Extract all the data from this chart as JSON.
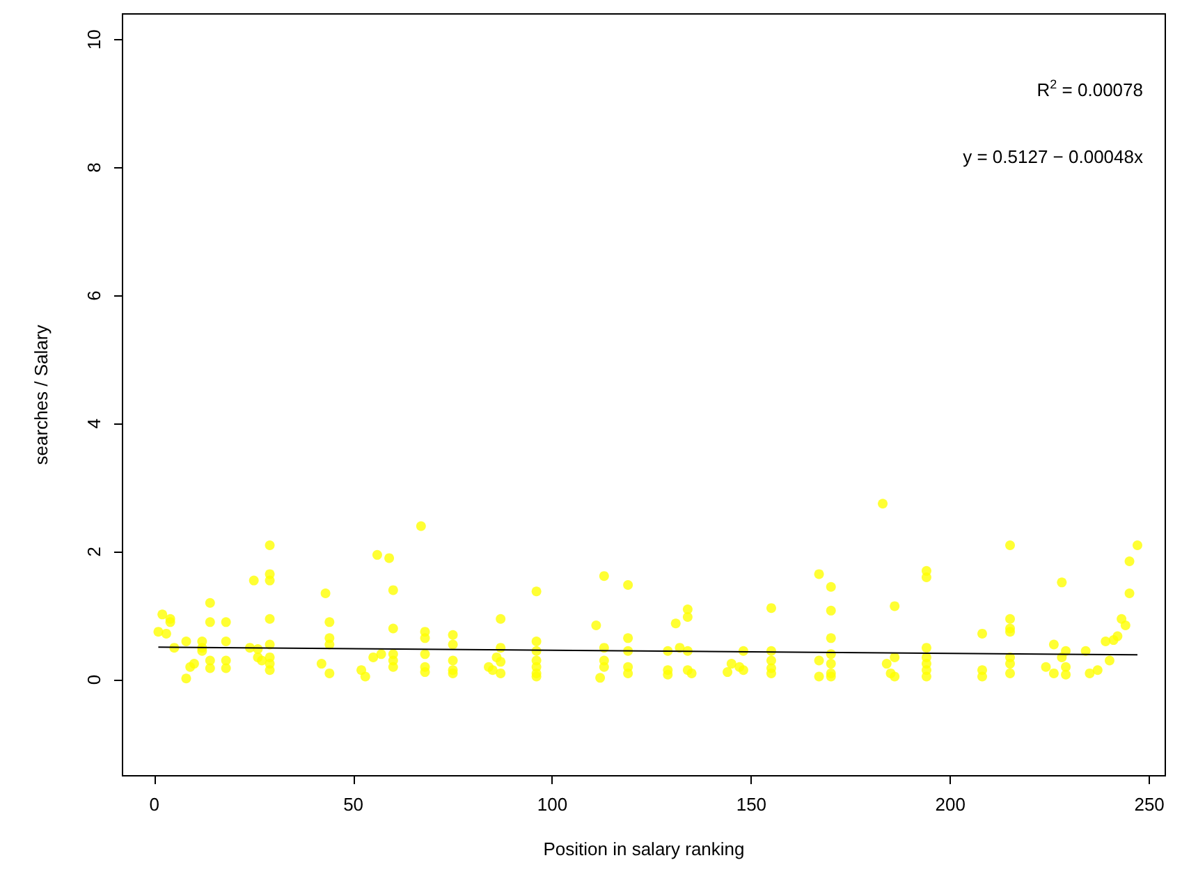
{
  "chart_data": {
    "type": "scatter",
    "xlabel": "Position in salary ranking",
    "ylabel": "searches / Salary",
    "annotations": [
      "R$^{2}$ = 0.00078",
      "y = 0.5127 − 0.00048x"
    ],
    "xlim": [
      -8,
      254
    ],
    "ylim": [
      -1.5,
      10.4
    ],
    "xticks": [
      0,
      50,
      100,
      150,
      200,
      250
    ],
    "yticks": [
      0,
      2,
      4,
      6,
      8,
      10
    ],
    "grid": false,
    "series": [
      {
        "marker": "circle",
        "color": "#ffff00",
        "x": [
          1,
          2,
          3,
          4,
          4,
          5,
          8,
          8,
          9,
          10,
          12,
          12,
          12,
          14,
          14,
          14,
          14,
          18,
          18,
          18,
          18,
          24,
          25,
          26,
          27,
          26,
          29,
          29,
          29,
          29,
          29,
          29,
          29,
          29,
          42,
          43,
          44,
          44,
          44,
          44,
          52,
          53,
          55,
          56,
          57,
          59,
          60,
          60,
          60,
          60,
          60,
          67,
          68,
          68,
          68,
          68,
          68,
          75,
          75,
          75,
          75,
          75,
          84,
          85,
          86,
          87,
          87,
          87,
          87,
          96,
          96,
          96,
          96,
          96,
          96,
          96,
          111,
          112,
          113,
          113,
          113,
          113,
          119,
          119,
          119,
          119,
          119,
          129,
          129,
          129,
          131,
          132,
          134,
          134,
          134,
          134,
          135,
          144,
          145,
          147,
          148,
          148,
          155,
          155,
          155,
          155,
          155,
          167,
          167,
          167,
          170,
          170,
          170,
          170,
          170,
          170,
          170,
          183,
          184,
          185,
          186,
          186,
          186,
          194,
          194,
          194,
          194,
          194,
          194,
          194,
          208,
          208,
          208,
          215,
          215,
          215,
          215,
          215,
          215,
          215,
          224,
          226,
          226,
          228,
          228,
          229,
          229,
          229,
          234,
          235,
          237,
          239,
          240,
          241,
          242,
          243,
          244,
          245,
          245,
          247
        ],
        "values": [
          0.75,
          1.02,
          0.72,
          0.9,
          0.95,
          0.5,
          0.6,
          0.02,
          0.2,
          0.25,
          0.6,
          0.5,
          0.45,
          1.2,
          0.9,
          0.3,
          0.18,
          0.9,
          0.6,
          0.3,
          0.18,
          0.5,
          1.55,
          0.35,
          0.3,
          0.48,
          2.1,
          1.65,
          1.55,
          0.95,
          0.55,
          0.35,
          0.25,
          0.15,
          0.25,
          1.35,
          0.9,
          0.65,
          0.55,
          0.1,
          0.15,
          0.05,
          0.35,
          1.95,
          0.4,
          1.9,
          1.4,
          0.8,
          0.4,
          0.3,
          0.2,
          2.4,
          0.75,
          0.65,
          0.4,
          0.2,
          0.12,
          0.7,
          0.55,
          0.3,
          0.15,
          0.1,
          0.2,
          0.15,
          0.35,
          0.95,
          0.5,
          0.28,
          0.1,
          1.38,
          0.6,
          0.45,
          0.3,
          0.2,
          0.1,
          0.05,
          0.85,
          0.03,
          1.62,
          0.5,
          0.3,
          0.2,
          1.48,
          0.65,
          0.45,
          0.2,
          0.1,
          0.45,
          0.15,
          0.08,
          0.88,
          0.5,
          1.1,
          0.98,
          0.45,
          0.15,
          0.1,
          0.12,
          0.25,
          0.2,
          0.45,
          0.15,
          1.12,
          0.45,
          0.3,
          0.18,
          0.1,
          1.65,
          0.3,
          0.05,
          1.45,
          1.08,
          0.65,
          0.4,
          0.25,
          0.1,
          0.05,
          2.75,
          0.25,
          0.1,
          1.15,
          0.35,
          0.05,
          1.7,
          1.6,
          0.5,
          0.35,
          0.25,
          0.15,
          0.05,
          0.72,
          0.15,
          0.05,
          2.1,
          0.95,
          0.8,
          0.75,
          0.35,
          0.25,
          0.1,
          0.2,
          0.55,
          0.1,
          1.52,
          0.35,
          0.45,
          0.2,
          0.08,
          0.45,
          0.1,
          0.15,
          0.6,
          0.3,
          0.62,
          0.68,
          0.95,
          0.85,
          1.35,
          1.85,
          2.1
        ]
      },
      {
        "type": "line",
        "color": "#000000",
        "x": [
          1,
          247
        ],
        "values": [
          0.51,
          0.39
        ]
      }
    ]
  }
}
